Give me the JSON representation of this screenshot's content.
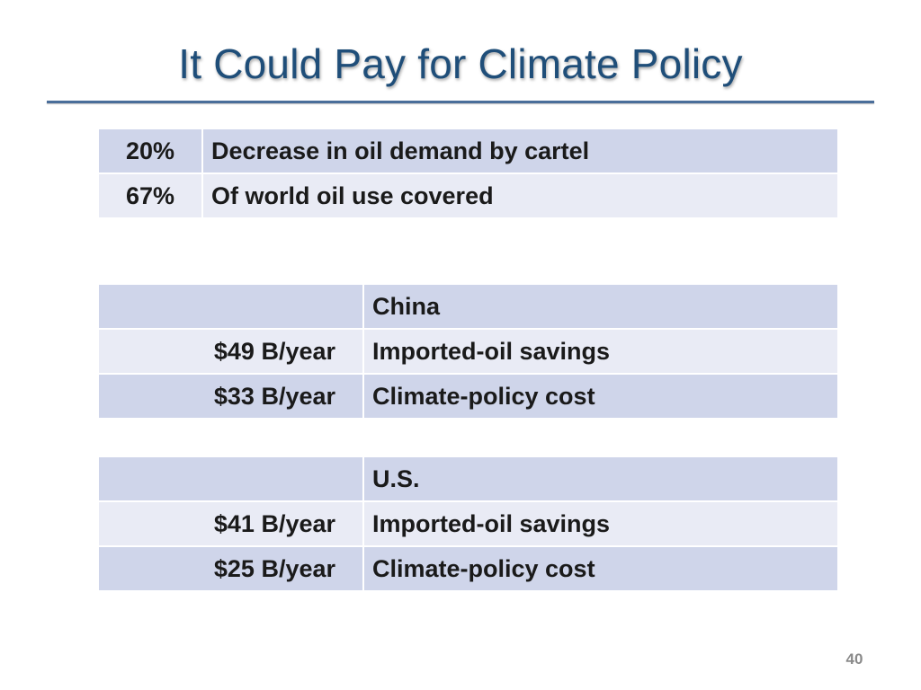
{
  "slide": {
    "title": "It Could Pay for Climate Policy",
    "page_number": "40"
  },
  "oil_table": {
    "rows": [
      {
        "value": "20%",
        "label": "Decrease in oil demand by cartel"
      },
      {
        "value": "67%",
        "label": "Of  world oil use covered"
      }
    ]
  },
  "china_table": {
    "header": "China",
    "rows": [
      {
        "value": "$49 B/year",
        "label": "Imported-oil savings"
      },
      {
        "value": "$33 B/year",
        "label": "Climate-policy cost"
      }
    ]
  },
  "us_table": {
    "header": "U.S.",
    "rows": [
      {
        "value": "$41 B/year",
        "label": "Imported-oil savings"
      },
      {
        "value": "$25 B/year",
        "label": "Climate-policy cost"
      }
    ]
  },
  "colors": {
    "title": "#1f4e79",
    "row_dark": "#cfd5ea",
    "row_light": "#e9ebf5"
  }
}
